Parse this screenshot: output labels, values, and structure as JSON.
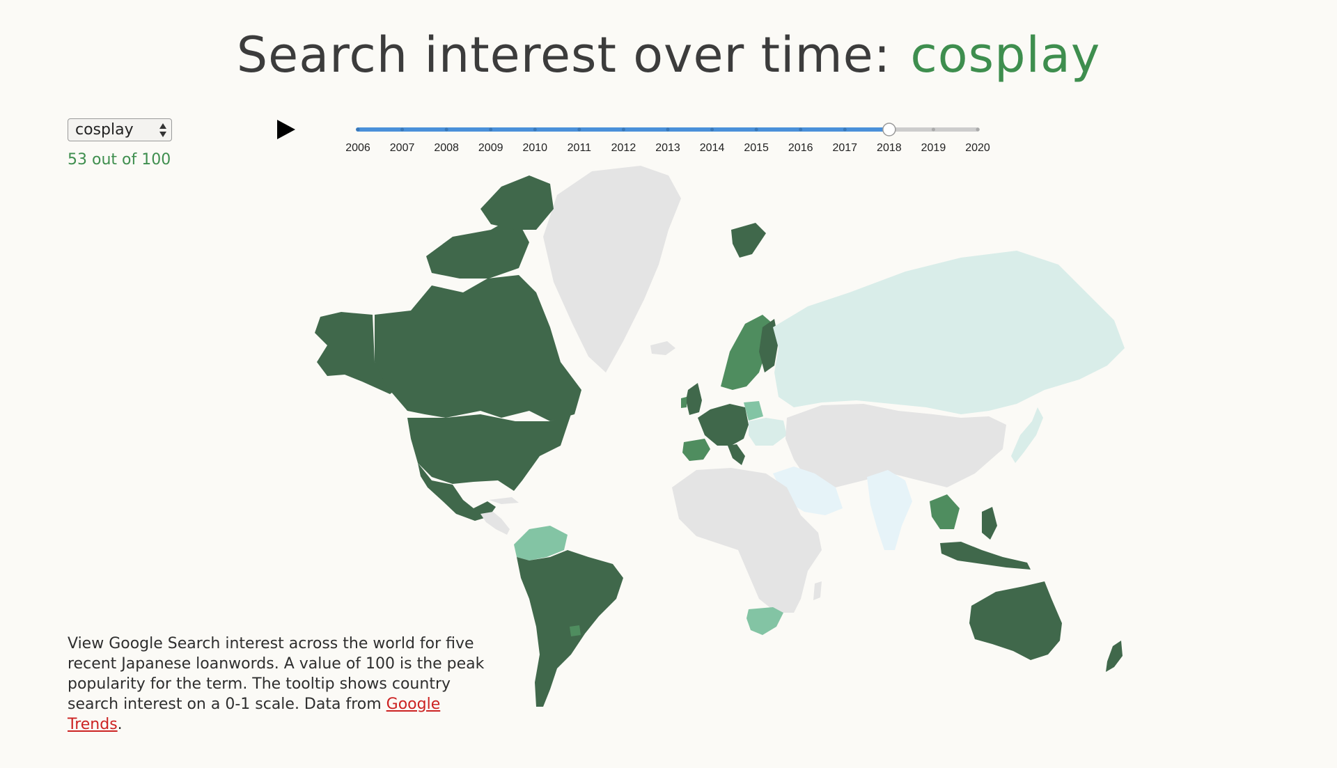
{
  "title": {
    "prefix": "Search interest over time:",
    "term": "cosplay"
  },
  "controls": {
    "select_value": "cosplay",
    "score_text": "53 out of 100"
  },
  "timeline": {
    "years": [
      "2006",
      "2007",
      "2008",
      "2009",
      "2010",
      "2011",
      "2012",
      "2013",
      "2014",
      "2015",
      "2016",
      "2017",
      "2018",
      "2019",
      "2020"
    ],
    "selected_year": "2018"
  },
  "note": {
    "text": "View Google Search interest across the world for five recent Japanese loanwords. A value of 100 is the peak popularity for the term. The tooltip shows country search interest on a 0-1 scale. Data from ",
    "link_text": "Google Trends",
    "end": "."
  },
  "colors": {
    "background": "#fbfaf6",
    "high": "#40684b",
    "mid": "#4f8d5f",
    "mid_light": "#83c4a4",
    "low": "#d9ede9",
    "very_low": "#e6f3f8",
    "no_data": "#e4e4e4",
    "accent_green": "#3e8e4e",
    "slider_fill": "#4a90d9",
    "slider_track": "#cccccc",
    "link": "#cc2222"
  },
  "icons": {
    "play": "play-icon",
    "select_arrows": "updown-arrows-icon"
  }
}
